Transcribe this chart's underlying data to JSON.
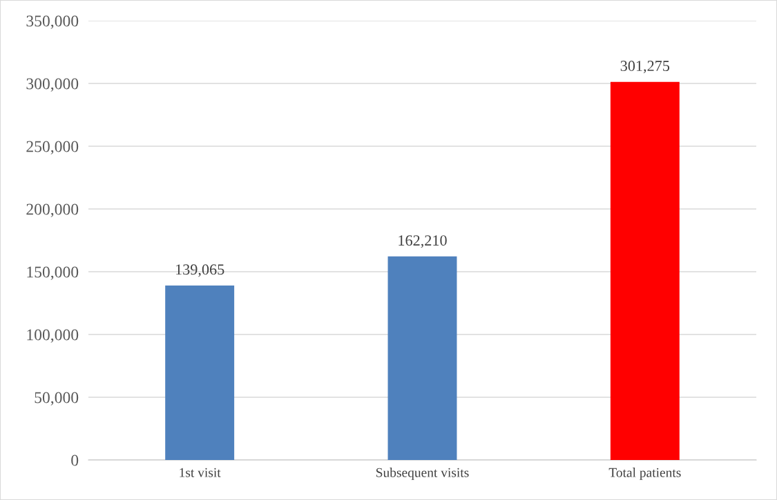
{
  "chart_data": {
    "type": "bar",
    "categories": [
      "1st visit",
      "Subsequent visits",
      "Total patients"
    ],
    "values": [
      139065,
      162210,
      301275
    ],
    "colors": [
      "#4f81bd",
      "#4f81bd",
      "#ff0000"
    ],
    "ylim": [
      0,
      350000
    ],
    "yticks": [
      0,
      {
        "value": 50000,
        "label": "50,000"
      },
      {
        "value": 100000,
        "label": "100,000"
      },
      {
        "value": 150000,
        "label": "150,000"
      },
      {
        "value": 200000,
        "label": "200,000"
      },
      {
        "value": 250000,
        "label": "250,000"
      },
      {
        "value": 300000,
        "label": "300,000"
      },
      {
        "value": 350000,
        "label": "350,000"
      }
    ],
    "grid": "y",
    "value_labels": [
      "139,065",
      "162,210",
      "301,275"
    ]
  }
}
